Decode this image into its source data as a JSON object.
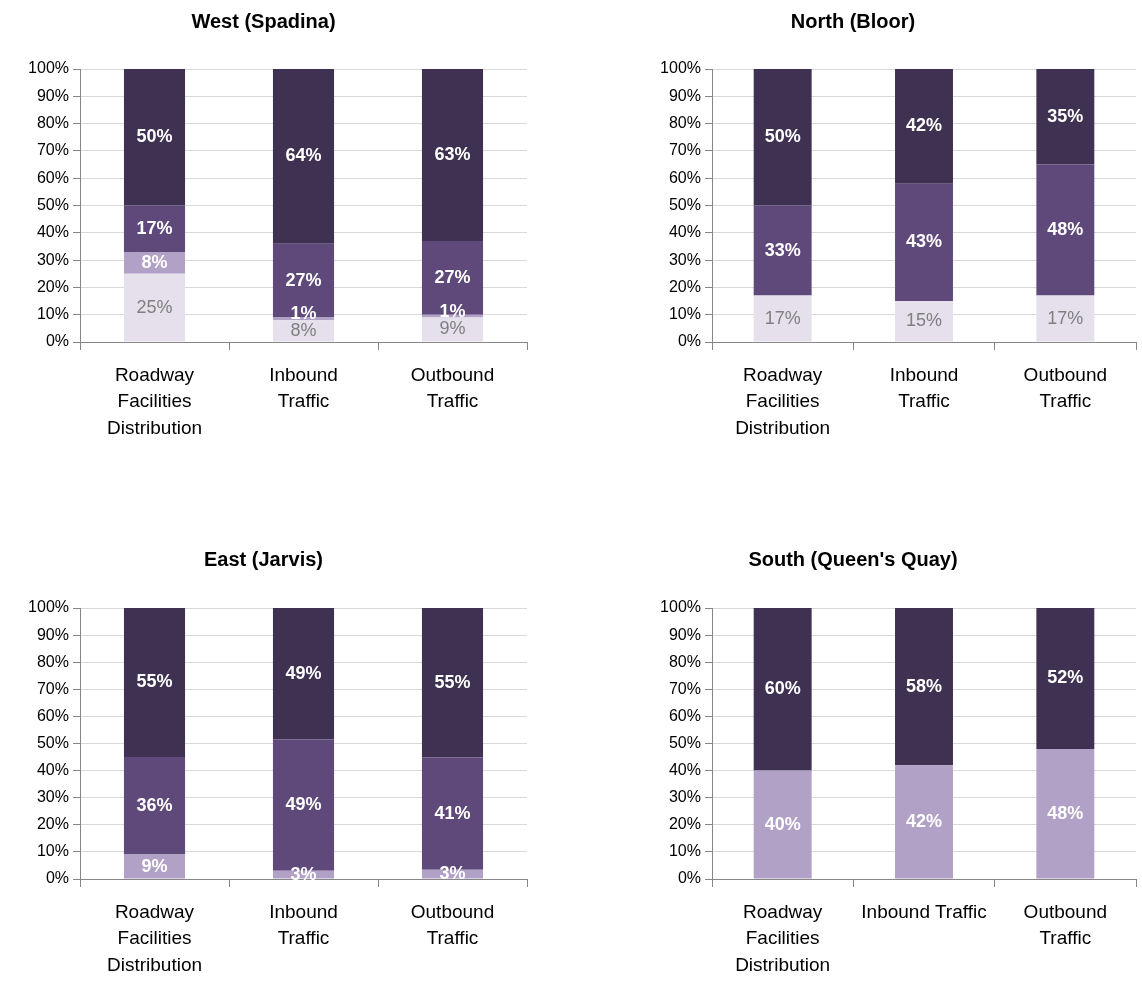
{
  "chart_data": [
    {
      "type": "bar",
      "stacked": true,
      "title": "West (Spadina)",
      "categories": [
        "Roadway Facilities Distribution",
        "Inbound Traffic",
        "Outbound Traffic"
      ],
      "series": [
        {
          "color": "#e5e0ec",
          "values": [
            25,
            8,
            9
          ],
          "value_labels": [
            "25%",
            "8%",
            "9%"
          ]
        },
        {
          "color": "#b2a1c7",
          "values": [
            8,
            1,
            1
          ],
          "value_labels": [
            "8%",
            "1%",
            "1%"
          ]
        },
        {
          "color": "#5f497a",
          "values": [
            17,
            27,
            27
          ],
          "value_labels": [
            "17%",
            "27%",
            "27%"
          ]
        },
        {
          "color": "#3f3151",
          "values": [
            50,
            64,
            63
          ],
          "value_labels": [
            "50%",
            "64%",
            "63%"
          ]
        }
      ],
      "ylim": [
        0,
        100
      ],
      "yticks": [
        {
          "value": 0,
          "label": "0%"
        },
        {
          "value": 10,
          "label": "10%"
        },
        {
          "value": 20,
          "label": "20%"
        },
        {
          "value": 30,
          "label": "30%"
        },
        {
          "value": 40,
          "label": "40%"
        },
        {
          "value": 50,
          "label": "50%"
        },
        {
          "value": 60,
          "label": "60%"
        },
        {
          "value": 70,
          "label": "70%"
        },
        {
          "value": 80,
          "label": "80%"
        },
        {
          "value": 90,
          "label": "90%"
        },
        {
          "value": 100,
          "label": "100%"
        }
      ],
      "grid": "y"
    },
    {
      "type": "bar",
      "stacked": true,
      "title": "North (Bloor)",
      "categories": [
        "Roadway Facilities Distribution",
        "Inbound Traffic",
        "Outbound Traffic"
      ],
      "series": [
        {
          "color": "#e5e0ec",
          "values": [
            17,
            15,
            17
          ],
          "value_labels": [
            "17%",
            "15%",
            "17%"
          ]
        },
        {
          "color": "#5f497a",
          "values": [
            33,
            43,
            48
          ],
          "value_labels": [
            "33%",
            "43%",
            "48%"
          ]
        },
        {
          "color": "#3f3151",
          "values": [
            50,
            42,
            35
          ],
          "value_labels": [
            "50%",
            "42%",
            "35%"
          ]
        }
      ],
      "ylim": [
        0,
        100
      ],
      "yticks": [
        {
          "value": 0,
          "label": "0%"
        },
        {
          "value": 10,
          "label": "10%"
        },
        {
          "value": 20,
          "label": "20%"
        },
        {
          "value": 30,
          "label": "30%"
        },
        {
          "value": 40,
          "label": "40%"
        },
        {
          "value": 50,
          "label": "50%"
        },
        {
          "value": 60,
          "label": "60%"
        },
        {
          "value": 70,
          "label": "70%"
        },
        {
          "value": 80,
          "label": "80%"
        },
        {
          "value": 90,
          "label": "90%"
        },
        {
          "value": 100,
          "label": "100%"
        }
      ],
      "grid": "y"
    },
    {
      "type": "bar",
      "stacked": true,
      "title": "East (Jarvis)",
      "categories": [
        "Roadway Facilities Distribution",
        "Inbound Traffic",
        "Outbound Traffic"
      ],
      "series": [
        {
          "color": "#b2a1c7",
          "values": [
            9,
            3,
            3.4
          ],
          "value_labels": [
            "9%",
            "3%",
            "3%"
          ]
        },
        {
          "color": "#5f497a",
          "values": [
            36,
            48.5,
            41.4
          ],
          "value_labels": [
            "36%",
            "49%",
            "41%"
          ]
        },
        {
          "color": "#3f3151",
          "values": [
            55,
            48.5,
            55.2
          ],
          "value_labels": [
            "55%",
            "49%",
            "55%"
          ]
        }
      ],
      "ylim": [
        0,
        100
      ],
      "yticks": [
        {
          "value": 0,
          "label": "0%"
        },
        {
          "value": 10,
          "label": "10%"
        },
        {
          "value": 20,
          "label": "20%"
        },
        {
          "value": 30,
          "label": "30%"
        },
        {
          "value": 40,
          "label": "40%"
        },
        {
          "value": 50,
          "label": "50%"
        },
        {
          "value": 60,
          "label": "60%"
        },
        {
          "value": 70,
          "label": "70%"
        },
        {
          "value": 80,
          "label": "80%"
        },
        {
          "value": 90,
          "label": "90%"
        },
        {
          "value": 100,
          "label": "100%"
        }
      ],
      "grid": "y"
    },
    {
      "type": "bar",
      "stacked": true,
      "title": "South (Queen's Quay)",
      "categories": [
        "Roadway Facilities Distribution",
        "Inbound Traffic",
        "Outbound Traffic"
      ],
      "series": [
        {
          "color": "#b2a1c7",
          "values": [
            40,
            42,
            48
          ],
          "value_labels": [
            "40%",
            "42%",
            "48%"
          ]
        },
        {
          "color": "#3f3151",
          "values": [
            60,
            58,
            52
          ],
          "value_labels": [
            "60%",
            "58%",
            "52%"
          ]
        }
      ],
      "ylim": [
        0,
        100
      ],
      "yticks": [
        {
          "value": 0,
          "label": "0%"
        },
        {
          "value": 10,
          "label": "10%"
        },
        {
          "value": 20,
          "label": "20%"
        },
        {
          "value": 30,
          "label": "30%"
        },
        {
          "value": 40,
          "label": "40%"
        },
        {
          "value": 50,
          "label": "50%"
        },
        {
          "value": 60,
          "label": "60%"
        },
        {
          "value": 70,
          "label": "70%"
        },
        {
          "value": 80,
          "label": "80%"
        },
        {
          "value": 90,
          "label": "90%"
        },
        {
          "value": 100,
          "label": "100%"
        }
      ],
      "grid": "y"
    }
  ]
}
